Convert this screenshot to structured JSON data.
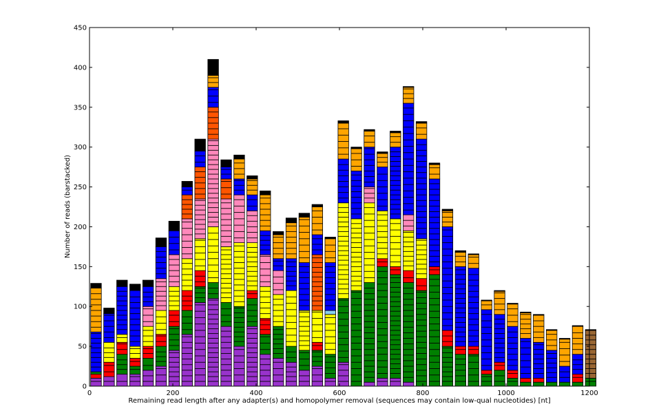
{
  "chart_data": {
    "type": "bar",
    "stacked": true,
    "xlabel": "Remaining read length after any adapter(s) and homopolymer removal (sequences may contain low-qual nucleotides) [nt]",
    "ylabel": "Number of reads (barstacked)",
    "xlim": [
      0,
      1200
    ],
    "ylim": [
      0,
      450
    ],
    "xticks": [
      0,
      200,
      400,
      600,
      800,
      1000,
      1200
    ],
    "yticks": [
      0,
      50,
      100,
      150,
      200,
      250,
      300,
      350,
      400,
      450
    ],
    "grid": false,
    "legend": "none",
    "segment_colors": {
      "purple": "#9933cc",
      "green": "#008000",
      "red": "#ff0000",
      "yellow": "#ffff00",
      "pink": "#ff88bb",
      "orange-red": "#ff5500",
      "blue": "#0000ff",
      "orange": "#ffa500",
      "skyblue": "#87ceeb",
      "brown": "#996633",
      "edge": "#000000"
    },
    "bin_width": 31.25,
    "bins": [
      {
        "x": 0,
        "segments": [
          [
            "purple",
            10
          ],
          [
            "red",
            5
          ],
          [
            "green",
            3
          ],
          [
            "blue",
            50
          ],
          [
            "orange",
            55
          ],
          [
            "black",
            6
          ]
        ]
      },
      {
        "x": 31.25,
        "segments": [
          [
            "purple",
            12
          ],
          [
            "red",
            18
          ],
          [
            "yellow",
            25
          ],
          [
            "blue",
            36
          ],
          [
            "black",
            7
          ]
        ]
      },
      {
        "x": 62.5,
        "segments": [
          [
            "purple",
            15
          ],
          [
            "green",
            25
          ],
          [
            "red",
            15
          ],
          [
            "yellow",
            10
          ],
          [
            "blue",
            60
          ],
          [
            "black",
            8
          ]
        ]
      },
      {
        "x": 93.75,
        "segments": [
          [
            "purple",
            15
          ],
          [
            "green",
            10
          ],
          [
            "red",
            10
          ],
          [
            "yellow",
            15
          ],
          [
            "blue",
            70
          ],
          [
            "black",
            8
          ]
        ]
      },
      {
        "x": 125,
        "segments": [
          [
            "purple",
            20
          ],
          [
            "green",
            15
          ],
          [
            "red",
            15
          ],
          [
            "yellow",
            25
          ],
          [
            "pink",
            25
          ],
          [
            "blue",
            25
          ],
          [
            "black",
            8
          ]
        ]
      },
      {
        "x": 156.25,
        "segments": [
          [
            "purple",
            25
          ],
          [
            "green",
            25
          ],
          [
            "red",
            15
          ],
          [
            "yellow",
            30
          ],
          [
            "pink",
            40
          ],
          [
            "blue",
            40
          ],
          [
            "black",
            11
          ]
        ]
      },
      {
        "x": 187.5,
        "segments": [
          [
            "purple",
            45
          ],
          [
            "green",
            30
          ],
          [
            "red",
            20
          ],
          [
            "yellow",
            30
          ],
          [
            "pink",
            40
          ],
          [
            "blue",
            30
          ],
          [
            "black",
            12
          ]
        ]
      },
      {
        "x": 218.75,
        "segments": [
          [
            "purple",
            65
          ],
          [
            "green",
            30
          ],
          [
            "red",
            25
          ],
          [
            "yellow",
            40
          ],
          [
            "pink",
            50
          ],
          [
            "orange-red",
            30
          ],
          [
            "blue",
            10
          ],
          [
            "black",
            7
          ]
        ]
      },
      {
        "x": 250,
        "segments": [
          [
            "purple",
            105
          ],
          [
            "green",
            20
          ],
          [
            "red",
            20
          ],
          [
            "yellow",
            40
          ],
          [
            "pink",
            50
          ],
          [
            "orange-red",
            40
          ],
          [
            "blue",
            20
          ],
          [
            "black",
            15
          ]
        ]
      },
      {
        "x": 281.25,
        "segments": [
          [
            "purple",
            110
          ],
          [
            "green",
            20
          ],
          [
            "yellow",
            70
          ],
          [
            "pink",
            110
          ],
          [
            "orange-red",
            40
          ],
          [
            "blue",
            25
          ],
          [
            "orange",
            15
          ],
          [
            "black",
            20
          ]
        ]
      },
      {
        "x": 312.5,
        "segments": [
          [
            "purple",
            75
          ],
          [
            "green",
            30
          ],
          [
            "yellow",
            70
          ],
          [
            "pink",
            60
          ],
          [
            "orange-red",
            25
          ],
          [
            "blue",
            15
          ],
          [
            "black",
            9
          ]
        ]
      },
      {
        "x": 343.75,
        "segments": [
          [
            "purple",
            50
          ],
          [
            "green",
            50
          ],
          [
            "yellow",
            80
          ],
          [
            "pink",
            60
          ],
          [
            "blue",
            20
          ],
          [
            "orange",
            25
          ],
          [
            "black",
            5
          ]
        ]
      },
      {
        "x": 375,
        "segments": [
          [
            "purple",
            75
          ],
          [
            "green",
            35
          ],
          [
            "red",
            10
          ],
          [
            "yellow",
            60
          ],
          [
            "pink",
            40
          ],
          [
            "blue",
            20
          ],
          [
            "orange",
            20
          ],
          [
            "black",
            4
          ]
        ]
      },
      {
        "x": 406.25,
        "segments": [
          [
            "purple",
            40
          ],
          [
            "green",
            25
          ],
          [
            "red",
            20
          ],
          [
            "yellow",
            40
          ],
          [
            "pink",
            40
          ],
          [
            "blue",
            30
          ],
          [
            "orange",
            45
          ],
          [
            "black",
            5
          ]
        ]
      },
      {
        "x": 437.5,
        "segments": [
          [
            "purple",
            35
          ],
          [
            "green",
            40
          ],
          [
            "yellow",
            40
          ],
          [
            "pink",
            30
          ],
          [
            "blue",
            15
          ],
          [
            "orange",
            30
          ],
          [
            "black",
            4
          ]
        ]
      },
      {
        "x": 468.75,
        "segments": [
          [
            "purple",
            30
          ],
          [
            "green",
            20
          ],
          [
            "yellow",
            70
          ],
          [
            "blue",
            40
          ],
          [
            "orange",
            45
          ],
          [
            "black",
            6
          ]
        ]
      },
      {
        "x": 500,
        "segments": [
          [
            "purple",
            20
          ],
          [
            "green",
            25
          ],
          [
            "yellow",
            50
          ],
          [
            "blue",
            60
          ],
          [
            "orange",
            57
          ],
          [
            "black",
            5
          ]
        ]
      },
      {
        "x": 531.25,
        "segments": [
          [
            "purple",
            25
          ],
          [
            "green",
            20
          ],
          [
            "red",
            10
          ],
          [
            "yellow",
            40
          ],
          [
            "orange-red",
            70
          ],
          [
            "blue",
            25
          ],
          [
            "orange",
            35
          ],
          [
            "black",
            3
          ]
        ]
      },
      {
        "x": 562.5,
        "segments": [
          [
            "purple",
            10
          ],
          [
            "green",
            30
          ],
          [
            "yellow",
            50
          ],
          [
            "skyblue",
            5
          ],
          [
            "blue",
            60
          ],
          [
            "orange",
            30
          ],
          [
            "black",
            2
          ]
        ]
      },
      {
        "x": 593.75,
        "segments": [
          [
            "purple",
            30
          ],
          [
            "green",
            80
          ],
          [
            "yellow",
            120
          ],
          [
            "blue",
            55
          ],
          [
            "orange",
            45
          ],
          [
            "black",
            3
          ]
        ]
      },
      {
        "x": 625,
        "segments": [
          [
            "green",
            120
          ],
          [
            "yellow",
            90
          ],
          [
            "blue",
            60
          ],
          [
            "orange",
            28
          ],
          [
            "black",
            2
          ]
        ]
      },
      {
        "x": 656.25,
        "segments": [
          [
            "purple",
            5
          ],
          [
            "green",
            125
          ],
          [
            "yellow",
            100
          ],
          [
            "pink",
            20
          ],
          [
            "blue",
            50
          ],
          [
            "orange",
            20
          ],
          [
            "black",
            2
          ]
        ]
      },
      {
        "x": 687.5,
        "segments": [
          [
            "purple",
            10
          ],
          [
            "green",
            140
          ],
          [
            "red",
            10
          ],
          [
            "yellow",
            60
          ],
          [
            "blue",
            55
          ],
          [
            "orange",
            17
          ],
          [
            "black",
            2
          ]
        ]
      },
      {
        "x": 718.75,
        "segments": [
          [
            "purple",
            10
          ],
          [
            "green",
            130
          ],
          [
            "red",
            10
          ],
          [
            "yellow",
            60
          ],
          [
            "blue",
            90
          ],
          [
            "orange",
            18
          ],
          [
            "black",
            2
          ]
        ]
      },
      {
        "x": 750,
        "segments": [
          [
            "purple",
            5
          ],
          [
            "green",
            125
          ],
          [
            "red",
            15
          ],
          [
            "yellow",
            50
          ],
          [
            "pink",
            20
          ],
          [
            "blue",
            140
          ],
          [
            "orange",
            20
          ],
          [
            "black",
            1
          ]
        ]
      },
      {
        "x": 781.25,
        "segments": [
          [
            "green",
            120
          ],
          [
            "red",
            15
          ],
          [
            "yellow",
            50
          ],
          [
            "blue",
            125
          ],
          [
            "orange",
            20
          ],
          [
            "black",
            2
          ]
        ]
      },
      {
        "x": 812.5,
        "segments": [
          [
            "green",
            140
          ],
          [
            "red",
            10
          ],
          [
            "blue",
            110
          ],
          [
            "orange",
            18
          ],
          [
            "black",
            2
          ]
        ]
      },
      {
        "x": 843.75,
        "segments": [
          [
            "green",
            50
          ],
          [
            "red",
            20
          ],
          [
            "blue",
            130
          ],
          [
            "orange",
            20
          ],
          [
            "black",
            2
          ]
        ]
      },
      {
        "x": 875,
        "segments": [
          [
            "green",
            40
          ],
          [
            "red",
            10
          ],
          [
            "blue",
            100
          ],
          [
            "orange",
            18
          ],
          [
            "black",
            2
          ]
        ]
      },
      {
        "x": 906.25,
        "segments": [
          [
            "green",
            40
          ],
          [
            "red",
            10
          ],
          [
            "blue",
            98
          ],
          [
            "orange",
            17
          ],
          [
            "black",
            1
          ]
        ]
      },
      {
        "x": 937.5,
        "segments": [
          [
            "green",
            15
          ],
          [
            "red",
            5
          ],
          [
            "blue",
            76
          ],
          [
            "orange",
            11
          ],
          [
            "black",
            1
          ]
        ]
      },
      {
        "x": 968.75,
        "segments": [
          [
            "green",
            20
          ],
          [
            "red",
            10
          ],
          [
            "blue",
            60
          ],
          [
            "orange",
            29
          ],
          [
            "black",
            1
          ]
        ]
      },
      {
        "x": 1000,
        "segments": [
          [
            "green",
            10
          ],
          [
            "red",
            10
          ],
          [
            "blue",
            55
          ],
          [
            "orange",
            28
          ],
          [
            "black",
            1
          ]
        ]
      },
      {
        "x": 1031.25,
        "segments": [
          [
            "green",
            5
          ],
          [
            "red",
            5
          ],
          [
            "blue",
            50
          ],
          [
            "orange",
            32
          ],
          [
            "black",
            1
          ]
        ]
      },
      {
        "x": 1062.5,
        "segments": [
          [
            "green",
            5
          ],
          [
            "red",
            5
          ],
          [
            "blue",
            45
          ],
          [
            "orange",
            34
          ],
          [
            "black",
            1
          ]
        ]
      },
      {
        "x": 1093.75,
        "segments": [
          [
            "green",
            5
          ],
          [
            "blue",
            40
          ],
          [
            "orange",
            25
          ],
          [
            "black",
            1
          ]
        ]
      },
      {
        "x": 1125,
        "segments": [
          [
            "green",
            5
          ],
          [
            "blue",
            20
          ],
          [
            "orange",
            34
          ],
          [
            "black",
            1
          ]
        ]
      },
      {
        "x": 1156.25,
        "segments": [
          [
            "green",
            5
          ],
          [
            "red",
            10
          ],
          [
            "blue",
            25
          ],
          [
            "orange",
            35
          ],
          [
            "black",
            1
          ]
        ]
      },
      {
        "x": 1187.5,
        "segments": [
          [
            "green",
            10
          ],
          [
            "brown",
            60
          ],
          [
            "black",
            1
          ]
        ]
      }
    ]
  }
}
